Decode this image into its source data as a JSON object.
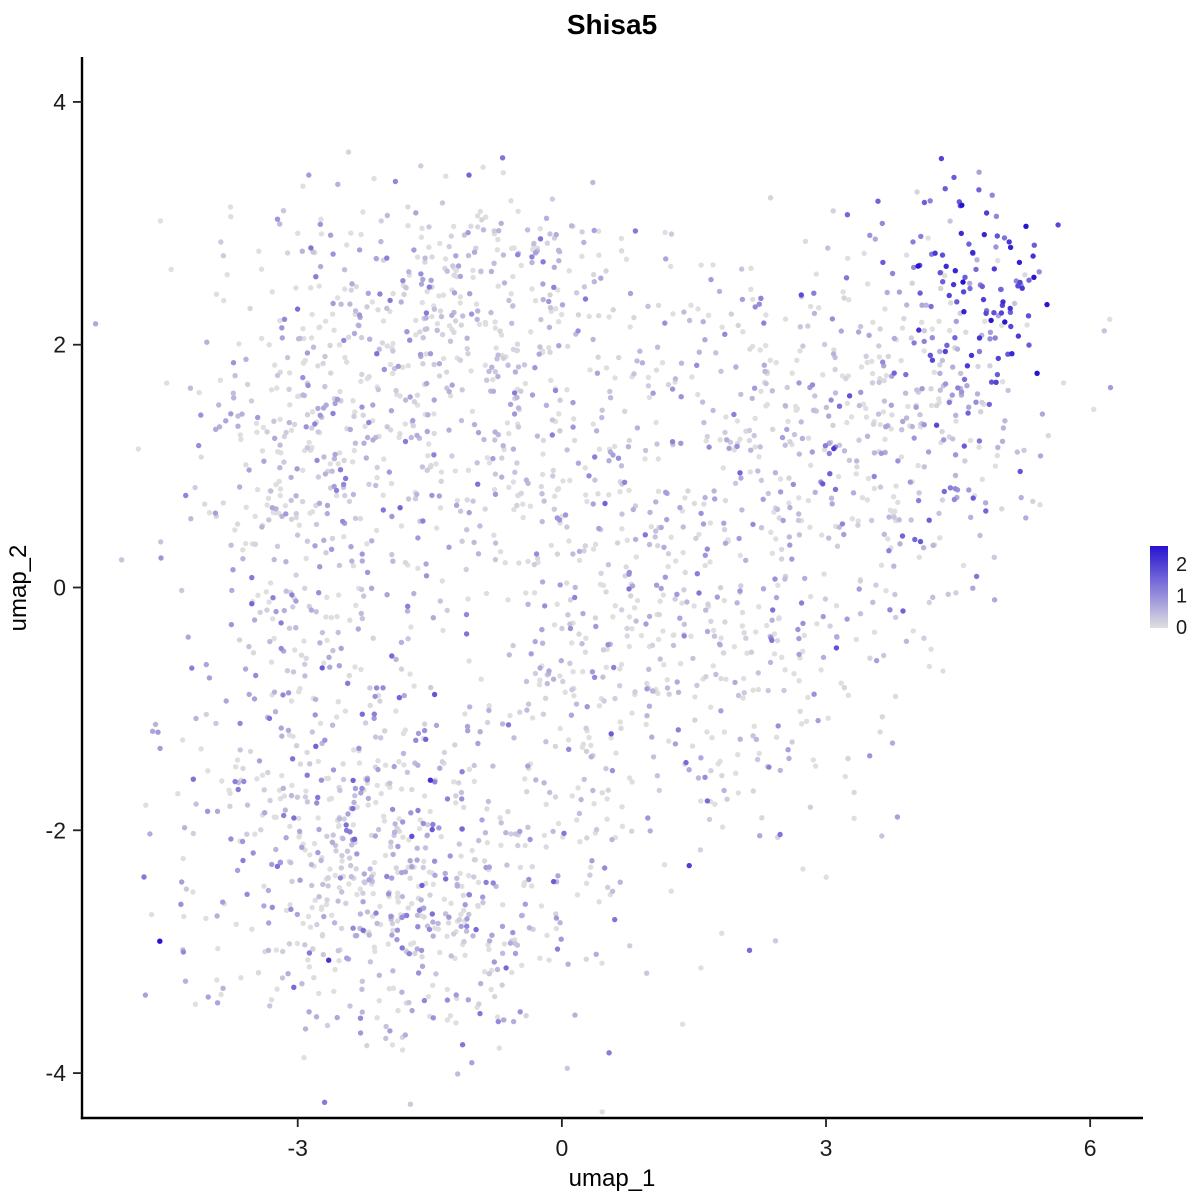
{
  "chart_data": {
    "type": "scatter",
    "title": "Shisa5",
    "xlabel": "umap_1",
    "ylabel": "umap_2",
    "xlim": [
      -5.45,
      6.6
    ],
    "ylim": [
      -4.37,
      4.37
    ],
    "x_ticks": [
      -3,
      0,
      3,
      6
    ],
    "y_ticks": [
      -4,
      -2,
      0,
      2,
      4
    ],
    "grid": false,
    "axis_style": "classic-left-bottom-only",
    "legend": {
      "position": "right",
      "ticks": [
        2,
        1,
        0
      ],
      "min": 0,
      "max": 2.6
    },
    "color_scale": {
      "low": "#DFDFDF",
      "high": "#2713D2",
      "meaning": "expression 0 = lightgrey, high = blue"
    },
    "point_radius": 2.7,
    "seed": 17,
    "n_points_total": 2794,
    "clusters": [
      {
        "n": 480,
        "cx": -1.9,
        "cy": 1.6,
        "sx": 1.15,
        "sy": 0.75,
        "expr_mean": 0.25,
        "expr_sd": 0.55
      },
      {
        "n": 160,
        "cx": -0.6,
        "cy": 2.6,
        "sx": 1.1,
        "sy": 0.35,
        "expr_mean": 0.2,
        "expr_sd": 0.5
      },
      {
        "n": 200,
        "cx": -3.0,
        "cy": 0.1,
        "sx": 0.55,
        "sy": 0.9,
        "expr_mean": 0.25,
        "expr_sd": 0.55
      },
      {
        "n": 500,
        "cx": -2.4,
        "cy": -2.2,
        "sx": 0.95,
        "sy": 0.75,
        "expr_mean": 0.3,
        "expr_sd": 0.6
      },
      {
        "n": 170,
        "cx": -1.2,
        "cy": -2.9,
        "sx": 0.7,
        "sy": 0.45,
        "expr_mean": 0.25,
        "expr_sd": 0.55
      },
      {
        "n": 270,
        "cx": 0.3,
        "cy": -1.2,
        "sx": 1.05,
        "sy": 0.95,
        "expr_mean": 0.2,
        "expr_sd": 0.5
      },
      {
        "n": 270,
        "cx": 0.6,
        "cy": 0.6,
        "sx": 1.15,
        "sy": 0.95,
        "expr_mean": 0.2,
        "expr_sd": 0.5
      },
      {
        "n": 130,
        "cx": 1.8,
        "cy": -0.6,
        "sx": 0.8,
        "sy": 0.9,
        "expr_mean": 0.2,
        "expr_sd": 0.5
      },
      {
        "n": 230,
        "cx": 3.0,
        "cy": 0.6,
        "sx": 0.85,
        "sy": 1.0,
        "expr_mean": 0.3,
        "expr_sd": 0.6
      },
      {
        "n": 170,
        "cx": 3.9,
        "cy": 1.7,
        "sx": 0.7,
        "sy": 0.65,
        "expr_mean": 0.4,
        "expr_sd": 0.7
      },
      {
        "n": 60,
        "cx": 2.3,
        "cy": 1.6,
        "sx": 0.8,
        "sy": 0.6,
        "expr_mean": 0.2,
        "expr_sd": 0.5
      },
      {
        "n": 60,
        "cx": 4.6,
        "cy": 1.1,
        "sx": 0.5,
        "sy": 0.55,
        "expr_mean": 0.5,
        "expr_sd": 0.7
      },
      {
        "n": 90,
        "cx": 4.85,
        "cy": 2.45,
        "sx": 0.42,
        "sy": 0.42,
        "expr_mean": 1.9,
        "expr_sd": 0.45
      },
      {
        "n": 4,
        "cx": -4.62,
        "cy": -1.28,
        "sx": 0.06,
        "sy": 0.12,
        "expr_mean": 0.8,
        "expr_sd": 0.3
      }
    ]
  }
}
